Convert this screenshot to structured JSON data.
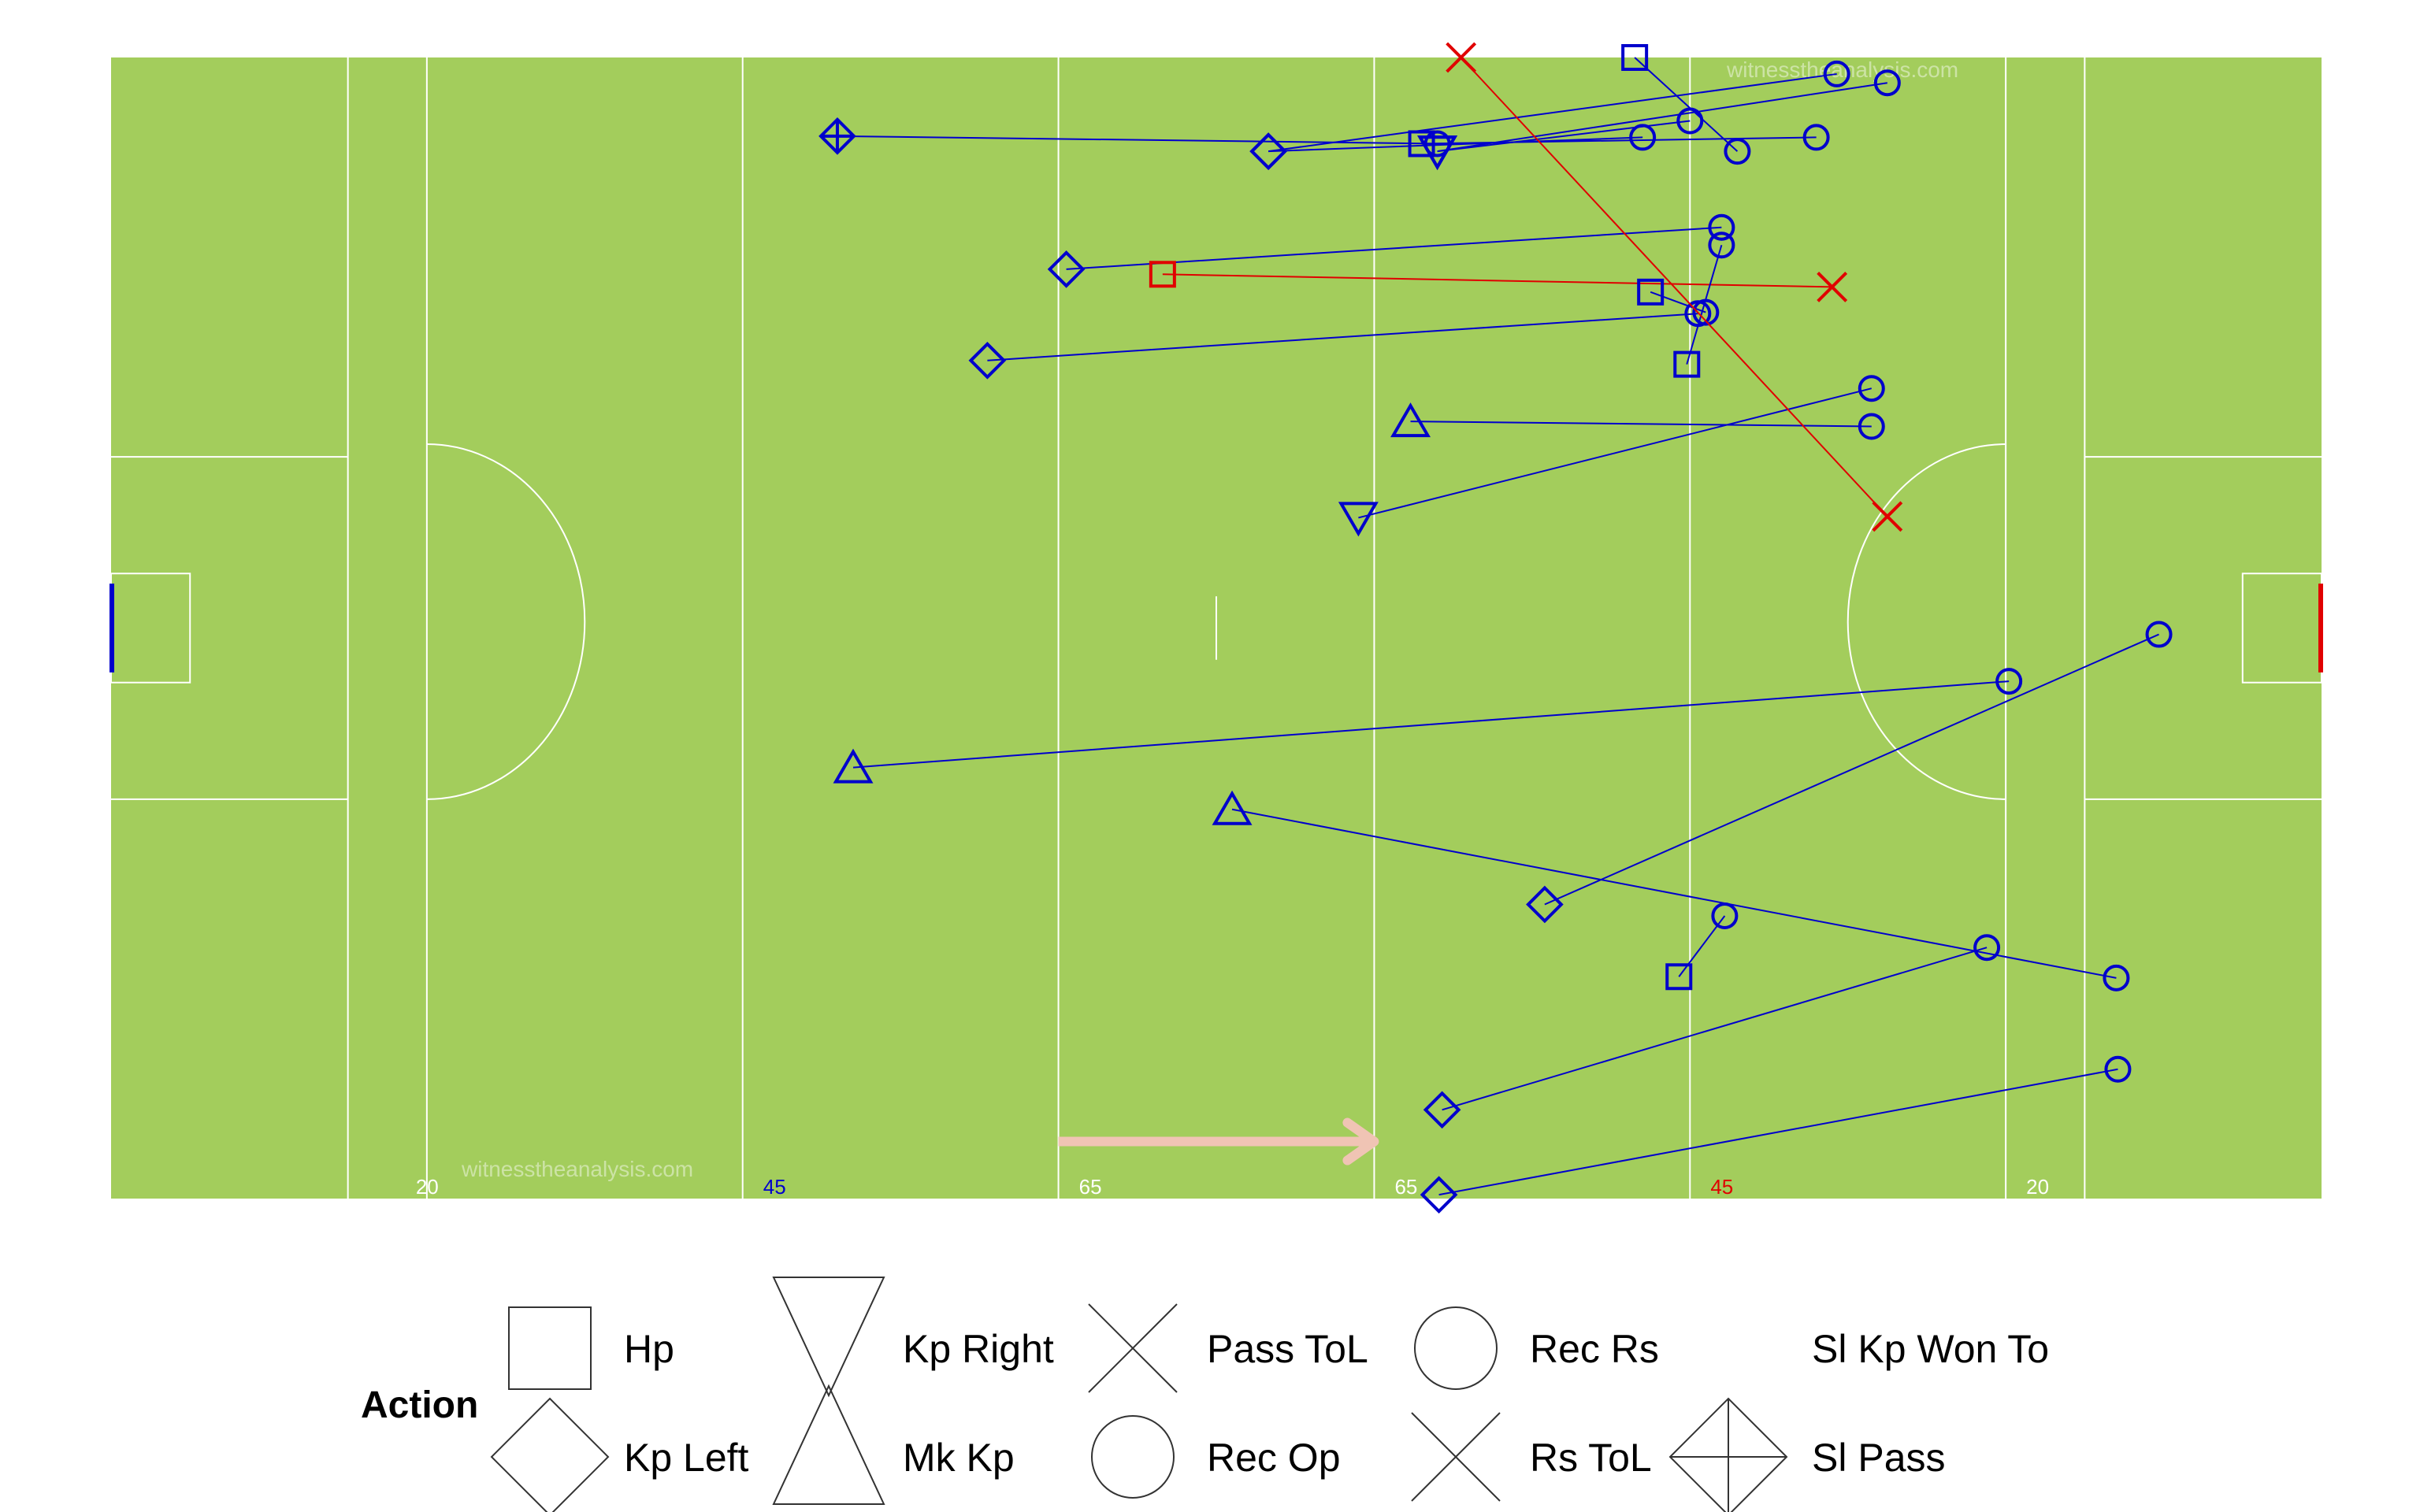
{
  "chart_data": {
    "type": "scatter",
    "subtype": "pitch-event-map",
    "xlim": [
      0,
      140
    ],
    "ylim": [
      0,
      90
    ],
    "watermark": "witnesstheanalysis.com",
    "colors": {
      "pitch": "#a3cd5c",
      "line": "#ffffff",
      "team": "#0000cc",
      "opponent": "#e00000",
      "arrow": "#f0c4b4",
      "left_goal": "#0000cc",
      "right_goal": "#e00000"
    },
    "pitch_labels": [
      {
        "x": 19,
        "text": "20",
        "color": "#ffffff"
      },
      {
        "x": 41,
        "text": "45",
        "color": "#0000cc"
      },
      {
        "x": 61,
        "text": "65",
        "color": "#ffffff"
      },
      {
        "x": 81,
        "text": "65",
        "color": "#ffffff"
      },
      {
        "x": 101,
        "text": "45",
        "color": "#e00000"
      },
      {
        "x": 121,
        "text": "20",
        "color": "#ffffff"
      }
    ],
    "direction_arrow": {
      "x_start": 60,
      "x_end": 80,
      "y": 4.5
    },
    "passes": [
      {
        "action": "Sl Pass",
        "team": "team",
        "x": 46,
        "y": 83.8,
        "x_end": 84,
        "y_end": 83.2
      },
      {
        "action": "Kp Left",
        "team": "team",
        "x": 73.3,
        "y": 82.6,
        "x_end": 109.3,
        "y_end": 88.7
      },
      {
        "action": "Kp Left",
        "team": "team",
        "x": 73.3,
        "y": 82.6,
        "x_end": 97,
        "y_end": 83.7
      },
      {
        "action": "Kp Right",
        "team": "team",
        "x": 84,
        "y": 82.6,
        "x_end": 112.5,
        "y_end": 88.0
      },
      {
        "action": "Kp Right",
        "team": "team",
        "x": 84,
        "y": 82.6,
        "x_end": 100,
        "y_end": 85.0
      },
      {
        "action": "Hp",
        "team": "team",
        "x": 83,
        "y": 83.2,
        "x_end": 108,
        "y_end": 83.7
      },
      {
        "action": "Hp",
        "team": "team",
        "x": 96.5,
        "y": 90.0,
        "x_end": 103,
        "y_end": 82.6
      },
      {
        "action": "Kp Left",
        "team": "team",
        "x": 60.5,
        "y": 73.3,
        "x_end": 102,
        "y_end": 76.6
      },
      {
        "action": "Hp",
        "team": "opponent",
        "x": 66.6,
        "y": 72.9,
        "x_end": 109,
        "y_end": 71.9
      },
      {
        "action": "Hp",
        "team": "team",
        "x": 97.5,
        "y": 71.5,
        "x_end": 101,
        "y_end": 69.9
      },
      {
        "action": "Kp Left",
        "team": "team",
        "x": 55.5,
        "y": 66.1,
        "x_end": 100.5,
        "y_end": 69.8
      },
      {
        "action": "Hp",
        "team": "team",
        "x": 99.8,
        "y": 65.8,
        "x_end": 102,
        "y_end": 75.2
      },
      {
        "action": "Mk Kp",
        "team": "team",
        "x": 82.3,
        "y": 61.3,
        "x_end": 111.5,
        "y_end": 60.9
      },
      {
        "action": "Kp Right",
        "team": "team",
        "x": 79,
        "y": 53.7,
        "x_end": 111.5,
        "y_end": 63.9
      },
      {
        "action": "Pass ToL",
        "team": "opponent",
        "x": 85.5,
        "y": 90.0,
        "x_end": 112.5,
        "y_end": 53.8
      },
      {
        "action": "Mk Kp",
        "team": "team",
        "x": 47,
        "y": 34.0,
        "x_end": 120.2,
        "y_end": 40.8
      },
      {
        "action": "Kp Left",
        "team": "team",
        "x": 90.8,
        "y": 23.2,
        "x_end": 129.7,
        "y_end": 44.5
      },
      {
        "action": "Mk Kp",
        "team": "team",
        "x": 71,
        "y": 30.7,
        "x_end": 127,
        "y_end": 17.4
      },
      {
        "action": "Hp",
        "team": "team",
        "x": 99.3,
        "y": 17.5,
        "x_end": 102.2,
        "y_end": 22.3
      },
      {
        "action": "Kp Left",
        "team": "team",
        "x": 84.3,
        "y": 7.0,
        "x_end": 118.8,
        "y_end": 19.8
      },
      {
        "action": "Kp Left",
        "team": "team",
        "x": 84.1,
        "y": 0.3,
        "x_end": 127.1,
        "y_end": 10.2
      }
    ],
    "legend": {
      "title": "Action",
      "items": [
        {
          "label": "Hp",
          "shape": "square"
        },
        {
          "label": "Kp Left",
          "shape": "diamond"
        },
        {
          "label": "Kp Right",
          "shape": "triangle-down"
        },
        {
          "label": "Mk Kp",
          "shape": "triangle-up"
        },
        {
          "label": "Pass ToL",
          "shape": "cross"
        },
        {
          "label": "Rec Op",
          "shape": "circle"
        },
        {
          "label": "Rec Rs",
          "shape": "circle"
        },
        {
          "label": "Rs ToL",
          "shape": "cross"
        },
        {
          "label": "Sl Kp Won To",
          "shape": "none"
        },
        {
          "label": "Sl Pass",
          "shape": "diamond-plus"
        }
      ]
    }
  }
}
